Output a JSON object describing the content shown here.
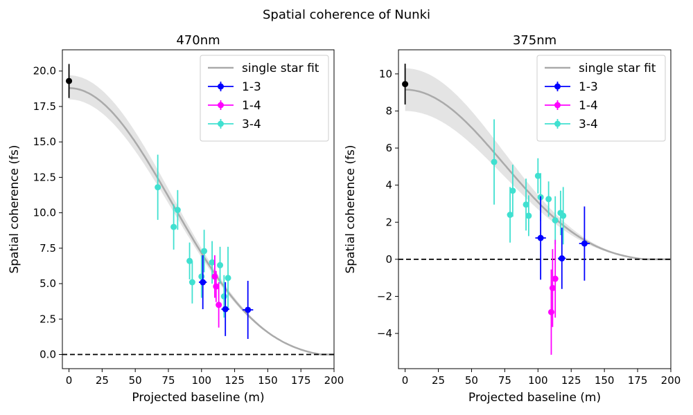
{
  "figure": {
    "suptitle": "Spatial coherence of Nunki"
  },
  "legend_labels": {
    "fit": "single star fit",
    "s13": "1-3",
    "s14": "1-4",
    "s34": "3-4"
  },
  "colors": {
    "fit_line": "#aaaaaa",
    "fit_band": "#e3e3e3",
    "zero_star": "#000000",
    "1-3": "#0000ff",
    "1-4": "#ff00ff",
    "3-4": "#40e0d0"
  },
  "chart_data": [
    {
      "type": "scatter",
      "title": "470nm",
      "xlabel": "Projected baseline (m)",
      "ylabel": "Spatial coherence (fs)",
      "xlim": [
        -5,
        200
      ],
      "ylim": [
        -1,
        21.5
      ],
      "xticks": [
        0,
        25,
        50,
        75,
        100,
        125,
        150,
        175,
        200
      ],
      "xtick_labels": [
        "0",
        "25",
        "50",
        "75",
        "100",
        "125",
        "150",
        "175",
        "200"
      ],
      "yticks": [
        0,
        2.5,
        5,
        7.5,
        10,
        12.5,
        15,
        17.5,
        20
      ],
      "ytick_labels": [
        "0.0",
        "2.5",
        "5.0",
        "7.5",
        "10.0",
        "12.5",
        "15.0",
        "17.5",
        "20.0"
      ],
      "legend_position": "upper right",
      "zero_line": true,
      "fit": {
        "amplitude": 18.8,
        "amp_low": 18.0,
        "amp_high": 19.7,
        "zero_at": 190
      },
      "zero_baseline_point": {
        "x": 0,
        "y": 19.3,
        "yerr": 1.2
      },
      "series": [
        {
          "name": "1-3",
          "points": [
            {
              "x": 101,
              "y": 5.1,
              "yerr": 1.9,
              "xerr": 3
            },
            {
              "x": 118,
              "y": 3.2,
              "yerr": 1.9,
              "xerr": 3
            },
            {
              "x": 135,
              "y": 3.15,
              "yerr": 2.05,
              "xerr": 4
            }
          ]
        },
        {
          "name": "1-4",
          "points": [
            {
              "x": 110,
              "y": 5.5,
              "yerr": 1.5,
              "xerr": 1
            },
            {
              "x": 111,
              "y": 4.8,
              "yerr": 1.1,
              "xerr": 1
            },
            {
              "x": 113,
              "y": 3.5,
              "yerr": 1.6,
              "xerr": 1
            }
          ]
        },
        {
          "name": "3-4",
          "points": [
            {
              "x": 67,
              "y": 11.8,
              "yerr": 2.3
            },
            {
              "x": 79,
              "y": 9.0,
              "yerr": 1.6
            },
            {
              "x": 82,
              "y": 10.2,
              "yerr": 1.4
            },
            {
              "x": 91,
              "y": 6.6,
              "yerr": 1.3
            },
            {
              "x": 93,
              "y": 5.1,
              "yerr": 1.5
            },
            {
              "x": 100,
              "y": 5.5,
              "yerr": 1.5
            },
            {
              "x": 102,
              "y": 7.3,
              "yerr": 1.5
            },
            {
              "x": 108,
              "y": 6.5,
              "yerr": 1.5
            },
            {
              "x": 114,
              "y": 6.3,
              "yerr": 1.3
            },
            {
              "x": 117,
              "y": 4.1,
              "yerr": 1.5
            },
            {
              "x": 120,
              "y": 5.4,
              "yerr": 2.2
            }
          ]
        }
      ]
    },
    {
      "type": "scatter",
      "title": "375nm",
      "xlabel": "Projected baseline (m)",
      "ylabel": "Spatial coherence (fs)",
      "xlim": [
        -5,
        200
      ],
      "ylim": [
        -5.9,
        11.3
      ],
      "xticks": [
        0,
        25,
        50,
        75,
        100,
        125,
        150,
        175,
        200
      ],
      "xtick_labels": [
        "0",
        "25",
        "50",
        "75",
        "100",
        "125",
        "150",
        "175",
        "200"
      ],
      "yticks": [
        -4,
        -2,
        0,
        2,
        4,
        6,
        8,
        10
      ],
      "ytick_labels": [
        "−4",
        "−2",
        "0",
        "2",
        "4",
        "6",
        "8",
        "10"
      ],
      "legend_position": "upper right",
      "zero_line": true,
      "fit": {
        "amplitude": 9.15,
        "amp_low": 8.0,
        "amp_high": 10.3,
        "zero_at": 180
      },
      "zero_baseline_point": {
        "x": 0,
        "y": 9.45,
        "yerr": 1.1
      },
      "series": [
        {
          "name": "1-3",
          "points": [
            {
              "x": 102,
              "y": 1.15,
              "yerr": 2.25,
              "xerr": 4
            },
            {
              "x": 118,
              "y": 0.05,
              "yerr": 1.65,
              "xerr": 3
            },
            {
              "x": 135,
              "y": 0.85,
              "yerr": 2.0,
              "xerr": 4
            }
          ]
        },
        {
          "name": "1-4",
          "points": [
            {
              "x": 110,
              "y": -2.85,
              "yerr": 2.3,
              "xerr": 1
            },
            {
              "x": 111,
              "y": -1.55,
              "yerr": 2.1,
              "xerr": 1
            },
            {
              "x": 113,
              "y": -1.05,
              "yerr": 2.1,
              "xerr": 1
            }
          ]
        },
        {
          "name": "3-4",
          "points": [
            {
              "x": 67,
              "y": 5.25,
              "yerr": 2.3
            },
            {
              "x": 79,
              "y": 2.4,
              "yerr": 1.5
            },
            {
              "x": 81,
              "y": 3.7,
              "yerr": 1.4
            },
            {
              "x": 91,
              "y": 2.95,
              "yerr": 1.4
            },
            {
              "x": 93,
              "y": 2.35,
              "yerr": 1.1
            },
            {
              "x": 100,
              "y": 4.5,
              "yerr": 0.95
            },
            {
              "x": 102,
              "y": 3.35,
              "yerr": 1.3
            },
            {
              "x": 108,
              "y": 3.25,
              "yerr": 0.95
            },
            {
              "x": 113,
              "y": 2.1,
              "yerr": 1.3
            },
            {
              "x": 117,
              "y": 2.5,
              "yerr": 1.2
            },
            {
              "x": 119,
              "y": 2.35,
              "yerr": 1.55
            }
          ]
        }
      ]
    }
  ]
}
